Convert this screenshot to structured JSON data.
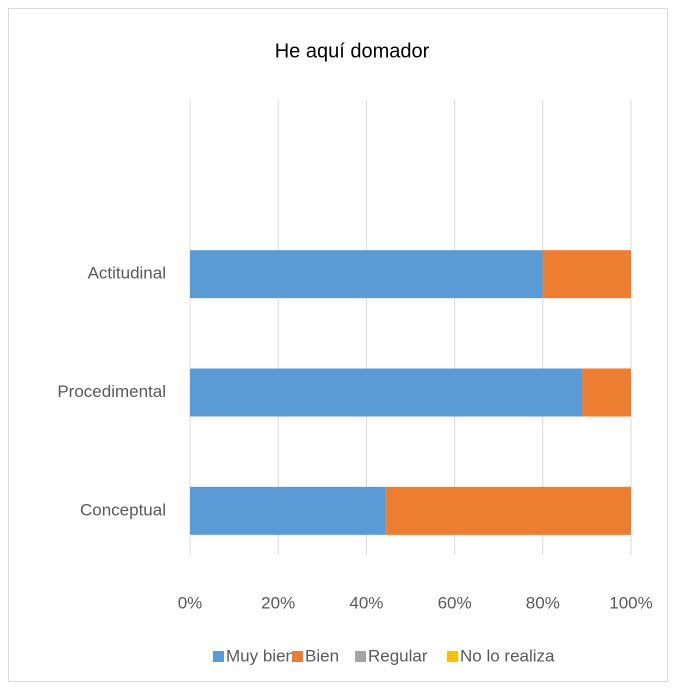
{
  "chart_data": {
    "type": "bar",
    "orientation": "horizontal",
    "stacked": true,
    "title": "He aquí domador",
    "categories": [
      "Conceptual",
      "Procedimental",
      "Actitudinal"
    ],
    "series": [
      {
        "name": "Muy bien",
        "color": "#5b9bd5",
        "values": [
          44.4,
          88.9,
          80
        ]
      },
      {
        "name": "Bien",
        "color": "#ed7d31",
        "values": [
          55.6,
          11.1,
          20
        ]
      },
      {
        "name": "Regular",
        "color": "#a5a5a5",
        "values": [
          0,
          0,
          0
        ]
      },
      {
        "name": "No lo realiza",
        "color": "#ffc000",
        "values": [
          0,
          0,
          0
        ]
      }
    ],
    "xlim": [
      0,
      100
    ],
    "xticks": [
      {
        "value": 0,
        "label": "0%"
      },
      {
        "value": 20,
        "label": "20%"
      },
      {
        "value": 40,
        "label": "40%"
      },
      {
        "value": 60,
        "label": "60%"
      },
      {
        "value": 80,
        "label": "80%"
      },
      {
        "value": 100,
        "label": "100%"
      }
    ],
    "grid": true,
    "legend": "bottom"
  }
}
